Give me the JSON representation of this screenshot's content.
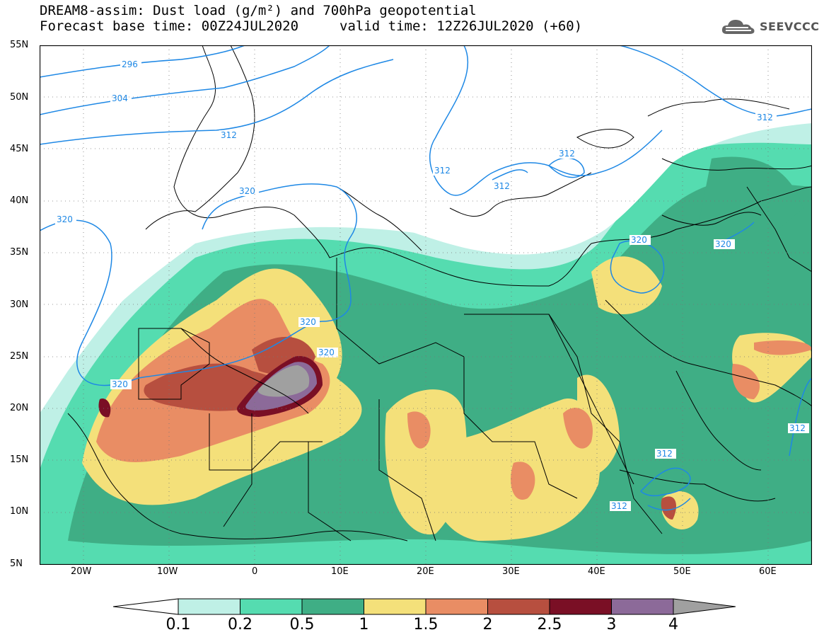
{
  "title": {
    "line1": "DREAM8-assim: Dust load (g/m²) and 700hPa geopotential",
    "line2_left": "Forecast base time: 00Z24JUL2020",
    "line2_right": "valid time: 12Z26JUL2020 (+60)"
  },
  "logo": {
    "text": "SEEVCCC",
    "icon": "cloud-icon"
  },
  "map": {
    "lat_labels": [
      "55N",
      "50N",
      "45N",
      "40N",
      "35N",
      "30N",
      "25N",
      "20N",
      "15N",
      "10N",
      "5N"
    ],
    "lon_labels": [
      "20W",
      "10W",
      "0",
      "10E",
      "20E",
      "30E",
      "40E",
      "50E",
      "60E"
    ],
    "contour_labels": [
      "296",
      "304",
      "312",
      "320",
      "320",
      "320",
      "320",
      "320",
      "320",
      "312",
      "312",
      "312",
      "312",
      "312",
      "312",
      "312",
      "320"
    ]
  },
  "colorbar": {
    "ticks": [
      "0.1",
      "0.2",
      "0.5",
      "1",
      "1.5",
      "2",
      "2.5",
      "3",
      "4"
    ],
    "colors": [
      "#bff0e6",
      "#55dcb0",
      "#3fae85",
      "#f4e07a",
      "#e98d64",
      "#b74f3f",
      "#7a0f25",
      "#8c6a99",
      "#a0a0a0"
    ]
  }
}
